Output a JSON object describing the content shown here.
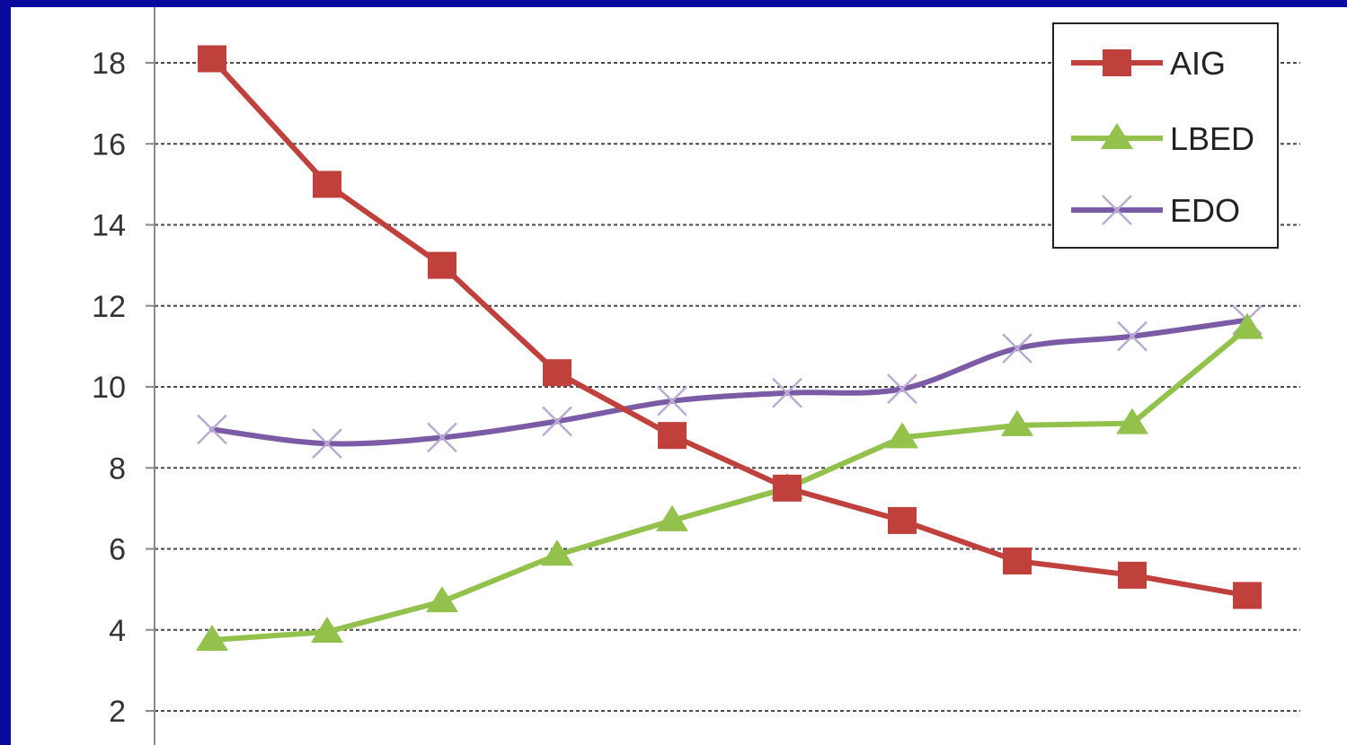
{
  "chart_data": {
    "type": "line",
    "title": "",
    "xlabel": "",
    "ylabel": "",
    "x": [
      1,
      2,
      3,
      4,
      5,
      6,
      7,
      8,
      9,
      10
    ],
    "ylim": [
      2,
      18
    ],
    "yticks": [
      2,
      4,
      6,
      8,
      10,
      12,
      14,
      16,
      18
    ],
    "ytick_labels": [
      "2",
      "4",
      "6",
      "8",
      "10",
      "12",
      "14",
      "16",
      "18"
    ],
    "grid": "horizontal-dashed",
    "legend": {
      "position": "top-right",
      "entries": [
        "AIG",
        "LBED",
        "EDO"
      ]
    },
    "series": [
      {
        "name": "AIG",
        "color": "#c0403c",
        "marker": "square",
        "values": [
          18.1,
          15.0,
          13.0,
          10.35,
          8.8,
          7.5,
          6.7,
          5.7,
          5.35,
          4.85
        ]
      },
      {
        "name": "LBED",
        "color": "#92c14c",
        "marker": "triangle",
        "values": [
          3.75,
          3.95,
          4.7,
          5.85,
          6.7,
          7.5,
          8.75,
          9.05,
          9.1,
          11.45
        ]
      },
      {
        "name": "EDO",
        "color": "#7b5ba6",
        "marker": "x",
        "values": [
          8.95,
          8.6,
          8.75,
          9.15,
          9.65,
          9.85,
          9.95,
          10.95,
          11.25,
          11.65
        ]
      }
    ]
  }
}
